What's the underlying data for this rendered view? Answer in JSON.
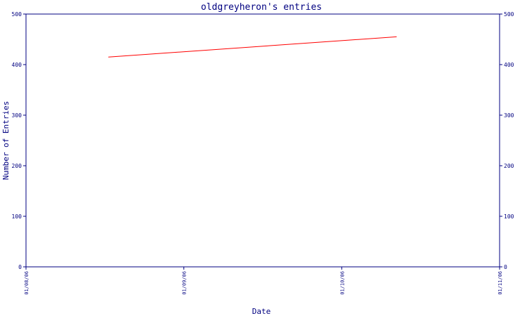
{
  "chart_data": {
    "type": "line",
    "title": "oldgreyheron's entries",
    "xlabel": "Date",
    "ylabel": "Number of Entries",
    "x_tick_labels": [
      "01/08/06",
      "01/09/06",
      "01/10/06",
      "01/11/06"
    ],
    "x_range": [
      "2006-08-01",
      "2006-11-01"
    ],
    "y_range": [
      0,
      500
    ],
    "y_ticks": [
      0,
      100,
      200,
      300,
      400,
      500
    ],
    "y_axis_right": true,
    "grid": false,
    "series": [
      {
        "color": "#ff0000",
        "points": [
          {
            "x": "2006-08-17",
            "y": 415
          },
          {
            "x": "2006-10-12",
            "y": 455
          }
        ]
      }
    ],
    "colors": {
      "axis": "#000080",
      "line": "#ff0000",
      "background": "#ffffff"
    }
  }
}
